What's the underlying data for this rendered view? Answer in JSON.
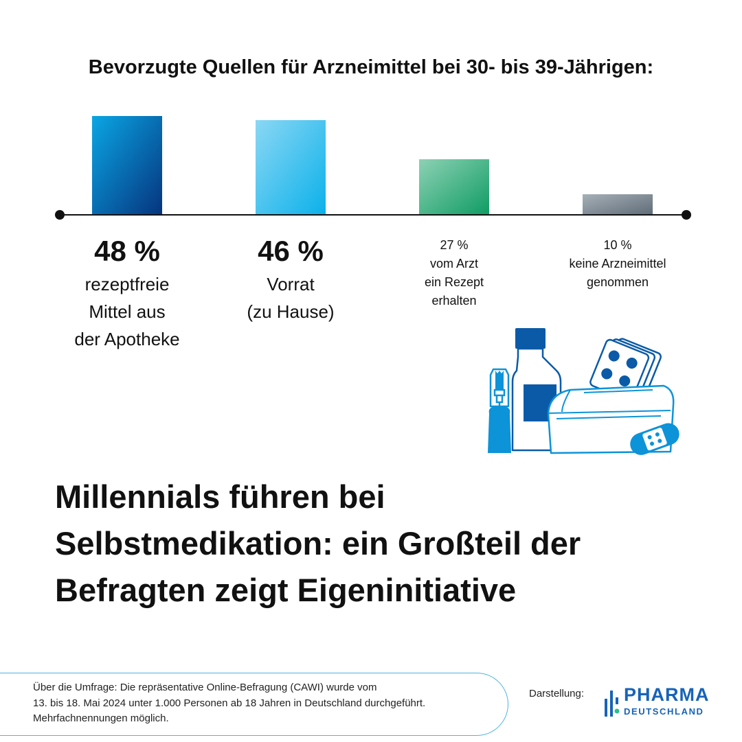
{
  "chart_data": {
    "type": "bar",
    "title": "Bevorzugte Quellen für Arzneimittel bei 30- bis 39-Jährigen:",
    "categories": [
      "rezeptfreie\nMittel aus\nder Apotheke",
      "Vorrat\n(zu Hause)",
      "vom Arzt\nein Rezept\nerhalten",
      "keine Arzneimittel\ngenommen"
    ],
    "value_labels": [
      "48 %",
      "46 %",
      "27 %",
      "10 %"
    ],
    "values": [
      48,
      46,
      27,
      10
    ],
    "ylim": [
      0,
      50
    ],
    "grid": false,
    "legend": "none",
    "bar_gradients": [
      [
        "#0aa6e4",
        "#06347e"
      ],
      [
        "#8bd7f4",
        "#0bb1ea"
      ],
      [
        "#8dd1b4",
        "#0f9c63"
      ],
      [
        "#a6b0b8",
        "#5f6b77"
      ]
    ],
    "emphasized": [
      true,
      true,
      false,
      false
    ]
  },
  "headline": "Millennials führen bei\nSelbstmedikation: ein Großteil der\nBefragten zeigt Eigeninitiative",
  "footer": {
    "survey_note": "Über die Umfrage: Die repräsentative Online-Befragung (CAWI) wurde vom\n13. bis 18. Mai 2024 unter 1.000 Personen ab 18 Jahren in Deutschland durchgeführt.\nMehrfachnennungen möglich.",
    "credit_label": "Darstellung:",
    "logo_text": "PHARMA",
    "logo_subtext": "DEUTSCHLAND"
  },
  "colors": {
    "accent_blue": "#1763b8",
    "light_blue": "#4fb3e0",
    "text": "#111111"
  },
  "illustration": {
    "icons": [
      "nasal-spray-icon",
      "medicine-bottle-icon",
      "pill-blister-icon",
      "medicine-box-icon",
      "bandage-icon"
    ]
  }
}
